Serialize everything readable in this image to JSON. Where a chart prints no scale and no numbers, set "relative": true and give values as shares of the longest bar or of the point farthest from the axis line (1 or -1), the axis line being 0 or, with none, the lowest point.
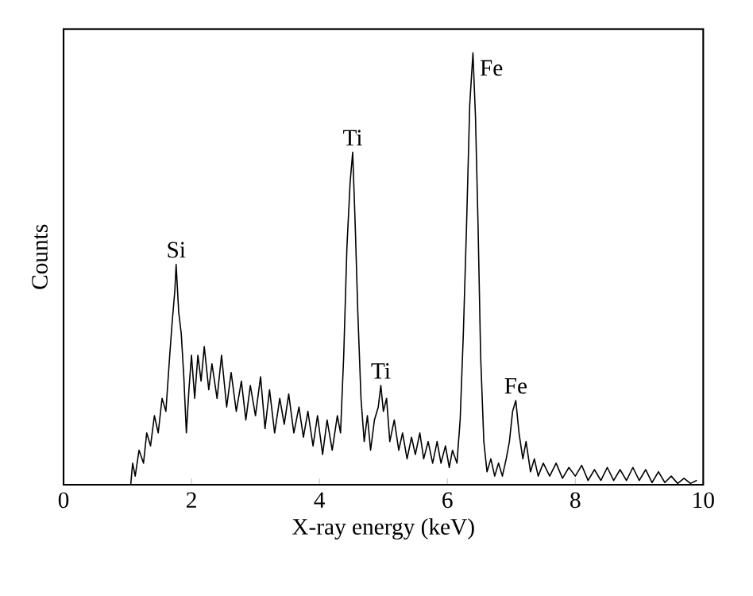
{
  "chart_data": {
    "type": "line",
    "xlabel": "X-ray energy (keV)",
    "ylabel": "Counts",
    "relative": true,
    "color": "#000000",
    "grid": false,
    "marker": "none",
    "line_style": "solid",
    "xlim": [
      0,
      10
    ],
    "xticks": [
      0,
      2,
      4,
      6,
      8,
      10
    ],
    "x": [
      1.05,
      1.08,
      1.12,
      1.18,
      1.25,
      1.3,
      1.36,
      1.42,
      1.48,
      1.54,
      1.6,
      1.66,
      1.7,
      1.74,
      1.76,
      1.8,
      1.84,
      1.88,
      1.92,
      1.96,
      2.0,
      2.05,
      2.1,
      2.15,
      2.2,
      2.27,
      2.32,
      2.4,
      2.47,
      2.55,
      2.62,
      2.7,
      2.78,
      2.85,
      2.92,
      3.0,
      3.08,
      3.15,
      3.22,
      3.3,
      3.38,
      3.45,
      3.52,
      3.6,
      3.68,
      3.75,
      3.82,
      3.9,
      3.97,
      4.05,
      4.12,
      4.2,
      4.28,
      4.33,
      4.38,
      4.43,
      4.48,
      4.52,
      4.56,
      4.6,
      4.65,
      4.7,
      4.75,
      4.8,
      4.86,
      4.92,
      4.96,
      5.0,
      5.05,
      5.1,
      5.17,
      5.24,
      5.3,
      5.37,
      5.44,
      5.5,
      5.57,
      5.63,
      5.7,
      5.77,
      5.84,
      5.9,
      5.97,
      6.03,
      6.08,
      6.15,
      6.2,
      6.25,
      6.3,
      6.35,
      6.4,
      6.44,
      6.48,
      6.52,
      6.57,
      6.62,
      6.68,
      6.74,
      6.8,
      6.86,
      6.92,
      6.97,
      7.02,
      7.07,
      7.12,
      7.18,
      7.23,
      7.3,
      7.36,
      7.42,
      7.5,
      7.6,
      7.7,
      7.8,
      7.9,
      8.0,
      8.1,
      8.2,
      8.3,
      8.4,
      8.5,
      8.6,
      8.7,
      8.8,
      8.9,
      9.0,
      9.1,
      9.2,
      9.3,
      9.4,
      9.5,
      9.6,
      9.7,
      9.8,
      9.9
    ],
    "values": [
      0,
      0.05,
      0.02,
      0.08,
      0.05,
      0.12,
      0.09,
      0.16,
      0.12,
      0.2,
      0.17,
      0.3,
      0.38,
      0.45,
      0.51,
      0.4,
      0.35,
      0.25,
      0.12,
      0.22,
      0.3,
      0.2,
      0.3,
      0.24,
      0.32,
      0.22,
      0.28,
      0.2,
      0.3,
      0.18,
      0.26,
      0.17,
      0.24,
      0.15,
      0.23,
      0.16,
      0.25,
      0.13,
      0.22,
      0.12,
      0.2,
      0.14,
      0.21,
      0.12,
      0.18,
      0.11,
      0.17,
      0.09,
      0.16,
      0.07,
      0.15,
      0.08,
      0.16,
      0.12,
      0.3,
      0.55,
      0.7,
      0.77,
      0.6,
      0.4,
      0.2,
      0.1,
      0.16,
      0.08,
      0.15,
      0.18,
      0.23,
      0.17,
      0.2,
      0.1,
      0.15,
      0.08,
      0.12,
      0.06,
      0.11,
      0.07,
      0.12,
      0.06,
      0.1,
      0.05,
      0.1,
      0.05,
      0.09,
      0.04,
      0.08,
      0.05,
      0.15,
      0.35,
      0.6,
      0.88,
      1.0,
      0.85,
      0.6,
      0.3,
      0.1,
      0.03,
      0.06,
      0.02,
      0.05,
      0.02,
      0.06,
      0.1,
      0.17,
      0.195,
      0.12,
      0.06,
      0.1,
      0.03,
      0.06,
      0.02,
      0.05,
      0.02,
      0.05,
      0.015,
      0.04,
      0.02,
      0.045,
      0.01,
      0.035,
      0.01,
      0.04,
      0.01,
      0.035,
      0.01,
      0.04,
      0.01,
      0.035,
      0.005,
      0.03,
      0.005,
      0.02,
      0.003,
      0.015,
      0.003,
      0.01
    ],
    "annotations": [
      {
        "text": "Si",
        "x": 1.76,
        "y": 0.51
      },
      {
        "text": "Ti",
        "x": 4.52,
        "y": 0.77
      },
      {
        "text": "Ti",
        "x": 4.96,
        "y": 0.23
      },
      {
        "text": "Fe",
        "x": 6.4,
        "y": 1.0
      },
      {
        "text": "Fe",
        "x": 7.07,
        "y": 0.195
      }
    ]
  }
}
